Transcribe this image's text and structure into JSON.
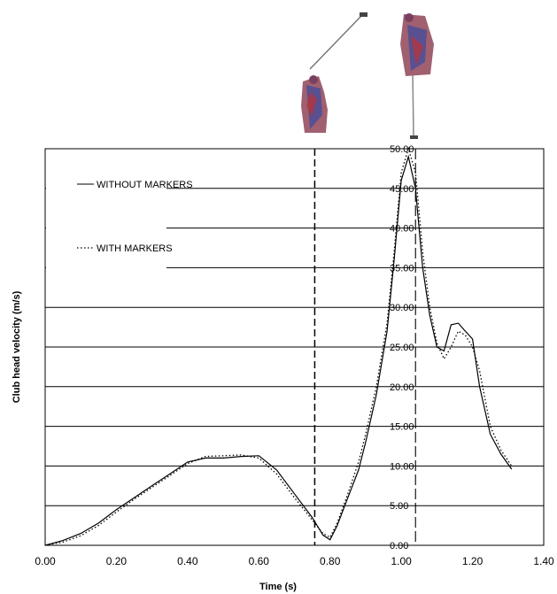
{
  "chart_data": {
    "type": "line",
    "title": "",
    "xlabel": "Time (s)",
    "ylabel": "Club head velocity (m/s)",
    "xlim": [
      0,
      1.4
    ],
    "ylim": [
      0,
      50
    ],
    "x_ticks": [
      "0.00",
      "0.20",
      "0.40",
      "0.60",
      "0.80",
      "1.00",
      "1.20",
      "1.40"
    ],
    "y_ticks": [
      "0.00",
      "5.00",
      "10.00",
      "15.00",
      "20.00",
      "25.00",
      "30.00",
      "35.00",
      "40.00",
      "45.00",
      "50.00"
    ],
    "grid": "horizontal",
    "legend_position": "top-left",
    "vertical_markers": [
      0.757,
      1.04
    ],
    "series": [
      {
        "name": "WITHOUT MARKERS",
        "style": "solid",
        "x": [
          0.0,
          0.05,
          0.1,
          0.15,
          0.2,
          0.25,
          0.3,
          0.35,
          0.4,
          0.45,
          0.5,
          0.55,
          0.6,
          0.65,
          0.7,
          0.75,
          0.78,
          0.8,
          0.82,
          0.85,
          0.88,
          0.9,
          0.93,
          0.96,
          0.98,
          1.0,
          1.02,
          1.04,
          1.06,
          1.08,
          1.1,
          1.12,
          1.14,
          1.16,
          1.18,
          1.2,
          1.22,
          1.25,
          1.28,
          1.31
        ],
        "y": [
          0.0,
          0.6,
          1.5,
          2.8,
          4.5,
          6.0,
          7.5,
          9.0,
          10.5,
          11.0,
          11.0,
          11.2,
          11.3,
          9.5,
          6.5,
          3.5,
          1.3,
          0.7,
          2.5,
          6.0,
          9.5,
          13.0,
          19.0,
          27.0,
          36.0,
          46.0,
          49.0,
          45.0,
          35.0,
          29.0,
          25.0,
          24.5,
          27.8,
          28.0,
          27.0,
          26.0,
          20.0,
          14.0,
          11.5,
          9.6
        ]
      },
      {
        "name": "WITH MARKERS",
        "style": "dotted",
        "x": [
          0.0,
          0.05,
          0.1,
          0.15,
          0.2,
          0.25,
          0.3,
          0.35,
          0.4,
          0.45,
          0.5,
          0.55,
          0.6,
          0.65,
          0.7,
          0.75,
          0.78,
          0.8,
          0.82,
          0.85,
          0.88,
          0.9,
          0.93,
          0.96,
          0.98,
          1.0,
          1.02,
          1.04,
          1.06,
          1.08,
          1.1,
          1.12,
          1.14,
          1.16,
          1.18,
          1.2,
          1.22,
          1.25,
          1.28,
          1.31
        ],
        "y": [
          0.0,
          0.4,
          1.2,
          2.5,
          4.2,
          5.8,
          7.3,
          8.8,
          10.3,
          11.2,
          11.3,
          11.4,
          11.0,
          9.0,
          6.0,
          3.2,
          1.5,
          1.0,
          2.8,
          6.5,
          10.5,
          14.0,
          20.0,
          28.0,
          37.0,
          47.0,
          50.0,
          47.0,
          37.0,
          30.0,
          25.5,
          23.5,
          25.0,
          27.0,
          26.5,
          25.0,
          22.0,
          15.0,
          12.0,
          10.0
        ]
      }
    ]
  }
}
